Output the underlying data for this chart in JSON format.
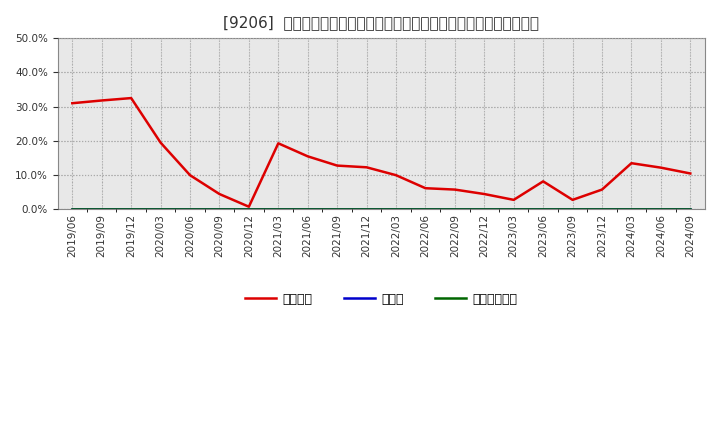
{
  "title": "[9206]  自己資本、のれん、繰延税金資産の総資産に対する比率の推移",
  "x_labels": [
    "2019/06",
    "2019/09",
    "2019/12",
    "2020/03",
    "2020/06",
    "2020/09",
    "2020/12",
    "2021/03",
    "2021/06",
    "2021/09",
    "2021/12",
    "2022/03",
    "2022/06",
    "2022/09",
    "2022/12",
    "2023/03",
    "2023/06",
    "2023/09",
    "2023/12",
    "2024/03",
    "2024/06",
    "2024/09"
  ],
  "jikoshihon": [
    0.31,
    0.318,
    0.325,
    0.195,
    0.1,
    0.045,
    0.008,
    0.193,
    0.155,
    0.128,
    0.123,
    0.1,
    0.062,
    0.058,
    0.045,
    0.028,
    0.082,
    0.028,
    0.058,
    0.135,
    0.122,
    0.105
  ],
  "noren": [
    0,
    0,
    0,
    0,
    0,
    0,
    0,
    0,
    0,
    0,
    0,
    0,
    0,
    0,
    0,
    0,
    0,
    0,
    0,
    0,
    0,
    0
  ],
  "kurinobe": [
    0,
    0,
    0,
    0,
    0,
    0,
    0,
    0,
    0,
    0,
    0,
    0,
    0,
    0,
    0,
    0,
    0,
    0,
    0,
    0,
    0,
    0
  ],
  "jikoshihon_color": "#dd0000",
  "noren_color": "#0000cc",
  "kurinobe_color": "#006600",
  "legend_label_jiko": "自己資本",
  "legend_label_noren": "のれん",
  "legend_label_kuri": "繰延税金資産",
  "ylim": [
    0.0,
    0.5
  ],
  "yticks": [
    0.0,
    0.1,
    0.2,
    0.3,
    0.4,
    0.5
  ],
  "plot_bg_color": "#e8e8e8",
  "fig_bg_color": "#ffffff",
  "grid_color": "#ffffff",
  "grid_color2": "#aaaaaa",
  "title_fontsize": 11,
  "axis_fontsize": 7.5,
  "legend_fontsize": 9
}
